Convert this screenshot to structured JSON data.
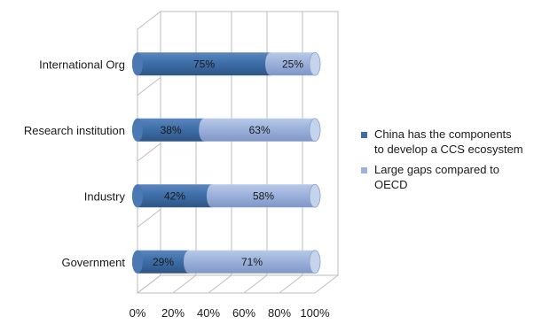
{
  "chart_data": {
    "type": "bar",
    "orientation": "horizontal",
    "stacked": "percent",
    "categories": [
      "International Org",
      "Research institution",
      "Industry",
      "Government"
    ],
    "series": [
      {
        "name": "China has the components to develop a CCS ecosystem",
        "values": [
          75,
          38,
          42,
          29
        ],
        "labels": [
          "75%",
          "38%",
          "42%",
          "29%"
        ],
        "color": "#3f6fa8"
      },
      {
        "name": "Large gaps compared to OECD",
        "values": [
          25,
          63,
          58,
          71
        ],
        "labels": [
          "25%",
          "63%",
          "58%",
          "71%"
        ],
        "color": "#9db2db"
      }
    ],
    "x_ticks": [
      "0%",
      "20%",
      "40%",
      "60%",
      "80%",
      "100%"
    ],
    "xlim": [
      0,
      100
    ],
    "grid": true,
    "legend_position": "right",
    "legend_lines": [
      [
        "China has the components",
        "to develop a CCS ecosystem"
      ],
      [
        "Large gaps compared to",
        "OECD"
      ]
    ]
  }
}
